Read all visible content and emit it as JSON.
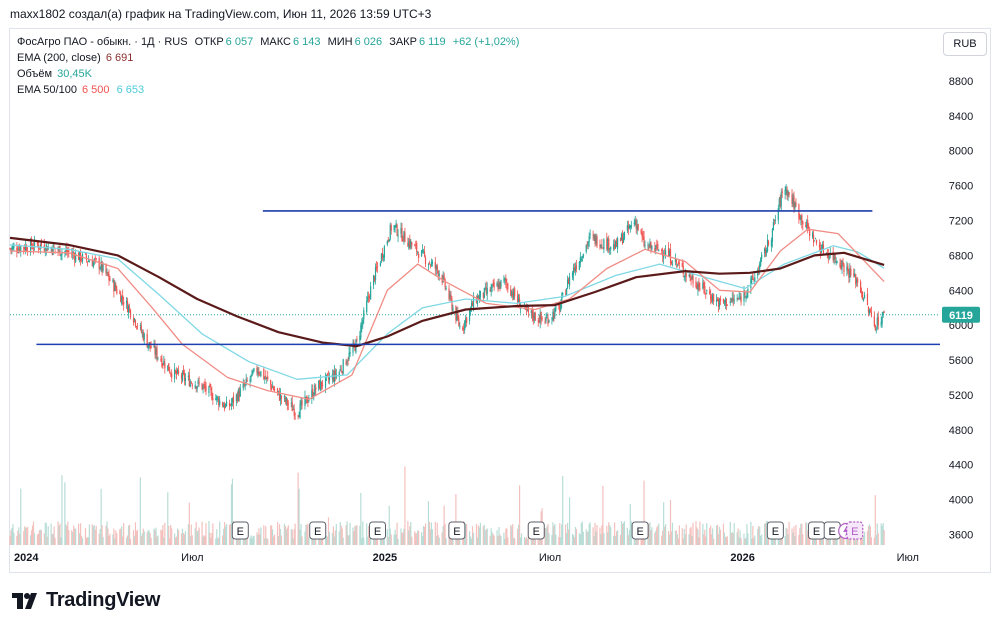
{
  "header": {
    "credit": "maxx1802 создал(а) график на TradingView.com, Июн 11, 2026 13:59 UTC+3"
  },
  "legend": {
    "symbol": "ФосАгро ПАО - обыкн. · 1Д · RUS",
    "open_label": "ОТКР",
    "open_value": "6 057",
    "high_label": "МАКС",
    "high_value": "6 143",
    "low_label": "МИН",
    "low_value": "6 026",
    "close_label": "ЗАКР",
    "close_value": "6 119",
    "change": "+62 (+1,02%)",
    "ema200_label": "EMA (200, close)",
    "ema200_value": "6 691",
    "volume_label": "Объём",
    "volume_value": "30,45K",
    "ema_pair_label": "EMA 50/100",
    "ema50_value": "6 500",
    "ema100_value": "6 653"
  },
  "currency": "RUB",
  "brand": "TradingView",
  "colors": {
    "up": "#26a69a",
    "down": "#ef5350",
    "ema50": "#f08c85",
    "ema100": "#7fd8e4",
    "ema200": "#5b1a1a",
    "trendline": "#1e3fae",
    "price_badge": "#26a69a",
    "vol_up": "#b7ddd6",
    "vol_down": "#f3c0bd",
    "legend_up": "#26a69a",
    "legend_down": "#ef5350"
  },
  "chart_data": {
    "type": "candlestick",
    "y_axis": {
      "ticks": [
        3600,
        4000,
        4400,
        4800,
        5200,
        5600,
        6000,
        6400,
        6800,
        7200,
        7600,
        8000,
        8400,
        8800
      ],
      "range": [
        3480,
        9040
      ]
    },
    "x_axis": {
      "labels": [
        {
          "date": "2024-01-01",
          "text": "2024"
        },
        {
          "date": "2024-07-01",
          "text": "Июл"
        },
        {
          "date": "2025-01-01",
          "text": "2025"
        },
        {
          "date": "2025-07-01",
          "text": "Июл"
        },
        {
          "date": "2026-01-01",
          "text": "2026"
        },
        {
          "date": "2026-07-01",
          "text": "Июл"
        }
      ],
      "start": "2024-01-01",
      "end": "2026-08-07"
    },
    "last_price": 6119,
    "price_path": [
      [
        "2024-01-01",
        6880
      ],
      [
        "2024-02-01",
        6920
      ],
      [
        "2024-03-01",
        6830
      ],
      [
        "2024-04-01",
        6700
      ],
      [
        "2024-05-01",
        6200
      ],
      [
        "2024-05-20",
        5800
      ],
      [
        "2024-06-15",
        5450
      ],
      [
        "2024-07-15",
        5300
      ],
      [
        "2024-08-10",
        5050
      ],
      [
        "2024-09-10",
        5500
      ],
      [
        "2024-10-01",
        5200
      ],
      [
        "2024-10-20",
        5000
      ],
      [
        "2024-11-10",
        5300
      ],
      [
        "2024-12-01",
        5450
      ],
      [
        "2024-12-20",
        5800
      ],
      [
        "2025-01-05",
        6500
      ],
      [
        "2025-01-25",
        7150
      ],
      [
        "2025-02-20",
        6850
      ],
      [
        "2025-03-15",
        6600
      ],
      [
        "2025-04-05",
        5950
      ],
      [
        "2025-04-20",
        6300
      ],
      [
        "2025-05-20",
        6500
      ],
      [
        "2025-06-10",
        6150
      ],
      [
        "2025-06-30",
        6050
      ],
      [
        "2025-07-15",
        6200
      ],
      [
        "2025-07-25",
        6550
      ],
      [
        "2025-08-15",
        7000
      ],
      [
        "2025-09-10",
        6900
      ],
      [
        "2025-09-30",
        7200
      ],
      [
        "2025-10-10",
        6900
      ],
      [
        "2025-10-30",
        6850
      ],
      [
        "2025-11-20",
        6600
      ],
      [
        "2025-12-10",
        6400
      ],
      [
        "2025-12-25",
        6250
      ],
      [
        "2026-01-15",
        6300
      ],
      [
        "2026-01-30",
        6550
      ],
      [
        "2026-02-15",
        7000
      ],
      [
        "2026-03-01",
        7600
      ],
      [
        "2026-03-20",
        7200
      ],
      [
        "2026-04-05",
        6900
      ],
      [
        "2026-04-25",
        6750
      ],
      [
        "2026-05-15",
        6500
      ],
      [
        "2026-06-01",
        6000
      ],
      [
        "2026-06-11",
        6119
      ]
    ],
    "ema50": [
      [
        "2024-01-01",
        6850
      ],
      [
        "2024-03-01",
        6830
      ],
      [
        "2024-04-20",
        6650
      ],
      [
        "2024-05-25",
        6200
      ],
      [
        "2024-06-25",
        5780
      ],
      [
        "2024-08-10",
        5400
      ],
      [
        "2024-09-20",
        5250
      ],
      [
        "2024-11-01",
        5150
      ],
      [
        "2024-12-15",
        5430
      ],
      [
        "2025-01-20",
        6400
      ],
      [
        "2025-02-20",
        6700
      ],
      [
        "2025-03-20",
        6500
      ],
      [
        "2025-05-01",
        6250
      ],
      [
        "2025-06-20",
        6180
      ],
      [
        "2025-07-25",
        6300
      ],
      [
        "2025-09-01",
        6650
      ],
      [
        "2025-10-10",
        6870
      ],
      [
        "2025-11-20",
        6730
      ],
      [
        "2025-12-25",
        6400
      ],
      [
        "2026-01-25",
        6380
      ],
      [
        "2026-02-25",
        6850
      ],
      [
        "2026-03-25",
        7100
      ],
      [
        "2026-04-25",
        7050
      ],
      [
        "2026-06-11",
        6500
      ]
    ],
    "ema100": [
      [
        "2024-01-01",
        6920
      ],
      [
        "2024-03-01",
        6870
      ],
      [
        "2024-04-20",
        6760
      ],
      [
        "2024-06-01",
        6350
      ],
      [
        "2024-07-15",
        5900
      ],
      [
        "2024-09-01",
        5580
      ],
      [
        "2024-10-20",
        5380
      ],
      [
        "2024-12-10",
        5430
      ],
      [
        "2025-01-20",
        5900
      ],
      [
        "2025-02-25",
        6200
      ],
      [
        "2025-04-10",
        6300
      ],
      [
        "2025-06-01",
        6250
      ],
      [
        "2025-07-20",
        6330
      ],
      [
        "2025-09-10",
        6570
      ],
      [
        "2025-10-25",
        6700
      ],
      [
        "2025-12-10",
        6550
      ],
      [
        "2026-01-20",
        6420
      ],
      [
        "2026-03-01",
        6700
      ],
      [
        "2026-04-20",
        6910
      ],
      [
        "2026-05-15",
        6840
      ],
      [
        "2026-06-11",
        6653
      ]
    ],
    "ema200": [
      [
        "2024-01-01",
        7000
      ],
      [
        "2024-03-01",
        6920
      ],
      [
        "2024-04-20",
        6800
      ],
      [
        "2024-06-01",
        6550
      ],
      [
        "2024-07-10",
        6300
      ],
      [
        "2024-08-20",
        6100
      ],
      [
        "2024-10-01",
        5920
      ],
      [
        "2024-11-15",
        5800
      ],
      [
        "2024-12-20",
        5760
      ],
      [
        "2025-01-20",
        5870
      ],
      [
        "2025-02-25",
        6050
      ],
      [
        "2025-04-10",
        6180
      ],
      [
        "2025-06-01",
        6220
      ],
      [
        "2025-07-10",
        6230
      ],
      [
        "2025-08-20",
        6380
      ],
      [
        "2025-10-01",
        6550
      ],
      [
        "2025-11-20",
        6620
      ],
      [
        "2025-12-25",
        6590
      ],
      [
        "2026-01-25",
        6600
      ],
      [
        "2026-02-25",
        6650
      ],
      [
        "2026-04-01",
        6800
      ],
      [
        "2026-05-01",
        6830
      ],
      [
        "2026-06-11",
        6691
      ]
    ],
    "trendlines": [
      {
        "from": [
          "2024-09-15",
          7310
        ],
        "to": [
          "2026-05-30",
          7310
        ]
      },
      {
        "from": [
          "2024-01-28",
          5780
        ],
        "to": [
          "2026-08-07",
          5780
        ]
      }
    ],
    "earnings_markers": [
      "2024-08-23",
      "2024-11-10",
      "2025-01-10",
      "2025-04-01",
      "2025-06-21",
      "2025-10-05",
      "2026-02-20",
      "2026-04-03",
      "2026-04-19"
    ],
    "future_event_marker": "2026-05-12",
    "earnings_glyph": "E"
  }
}
